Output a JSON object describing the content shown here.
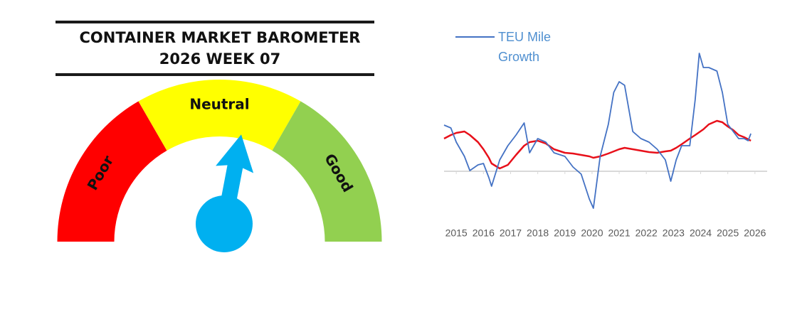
{
  "chart_data": [
    {
      "type": "gauge",
      "title": "CONTAINER MARKET BAROMETER",
      "subtitle": "2026 WEEK 07",
      "categories": [
        "Poor",
        "Neutral",
        "Good"
      ],
      "colors": [
        "#ff0000",
        "#ffff00",
        "#92d050"
      ],
      "range": [
        0,
        100
      ],
      "value": 56,
      "needle_color": "#00b0f0"
    },
    {
      "type": "line",
      "x": [
        2014.55,
        2014.8,
        2015.0,
        2015.3,
        2015.5,
        2015.8,
        2016.0,
        2016.2,
        2016.3,
        2016.6,
        2016.9,
        2017.2,
        2017.5,
        2017.7,
        2018.0,
        2018.3,
        2018.6,
        2019.0,
        2019.3,
        2019.6,
        2019.9,
        2020.05,
        2020.3,
        2020.6,
        2020.8,
        2021.0,
        2021.2,
        2021.5,
        2021.8,
        2022.1,
        2022.4,
        2022.7,
        2022.9,
        2023.1,
        2023.3,
        2023.6,
        2023.8,
        2023.95,
        2024.1,
        2024.3,
        2024.6,
        2024.8,
        2025.0,
        2025.2,
        2025.4,
        2025.6,
        2025.75,
        2025.85
      ],
      "series": [
        {
          "name": "TEU Mile Growth",
          "color": "#4472c4",
          "values": [
            6.5,
            6.1,
            4.1,
            2.1,
            0.1,
            0.9,
            1.1,
            -0.9,
            -2.1,
            1.6,
            3.6,
            5.1,
            6.8,
            2.6,
            4.6,
            4.1,
            2.6,
            2.1,
            0.6,
            -0.4,
            -3.9,
            -5.2,
            2.1,
            6.6,
            11.1,
            12.6,
            12.1,
            5.6,
            4.6,
            4.1,
            3.1,
            1.6,
            -1.4,
            1.6,
            3.6,
            3.6,
            10.1,
            16.6,
            14.6,
            14.6,
            14.1,
            11.1,
            6.6,
            5.6,
            4.6,
            4.6,
            4.3,
            5.3
          ]
        },
        {
          "color": "#e8101a",
          "values": [
            4.6,
            5.1,
            5.4,
            5.6,
            5.1,
            4.1,
            3.1,
            1.9,
            1.1,
            0.4,
            0.9,
            2.3,
            3.6,
            4.1,
            4.3,
            3.9,
            3.1,
            2.6,
            2.5,
            2.3,
            2.1,
            1.9,
            2.1,
            2.5,
            2.8,
            3.1,
            3.3,
            3.1,
            2.9,
            2.7,
            2.6,
            2.8,
            2.9,
            3.3,
            3.8,
            4.6,
            5.1,
            5.5,
            5.9,
            6.6,
            7.1,
            6.9,
            6.3,
            5.8,
            5.1,
            4.8,
            4.5,
            4.3
          ]
        }
      ],
      "xlim": [
        2014.55,
        2026.45
      ],
      "xticks": [
        2015,
        2016,
        2017,
        2018,
        2019,
        2020,
        2021,
        2022,
        2023,
        2024,
        2025,
        2026
      ],
      "ylim": [
        -8,
        18
      ]
    }
  ]
}
